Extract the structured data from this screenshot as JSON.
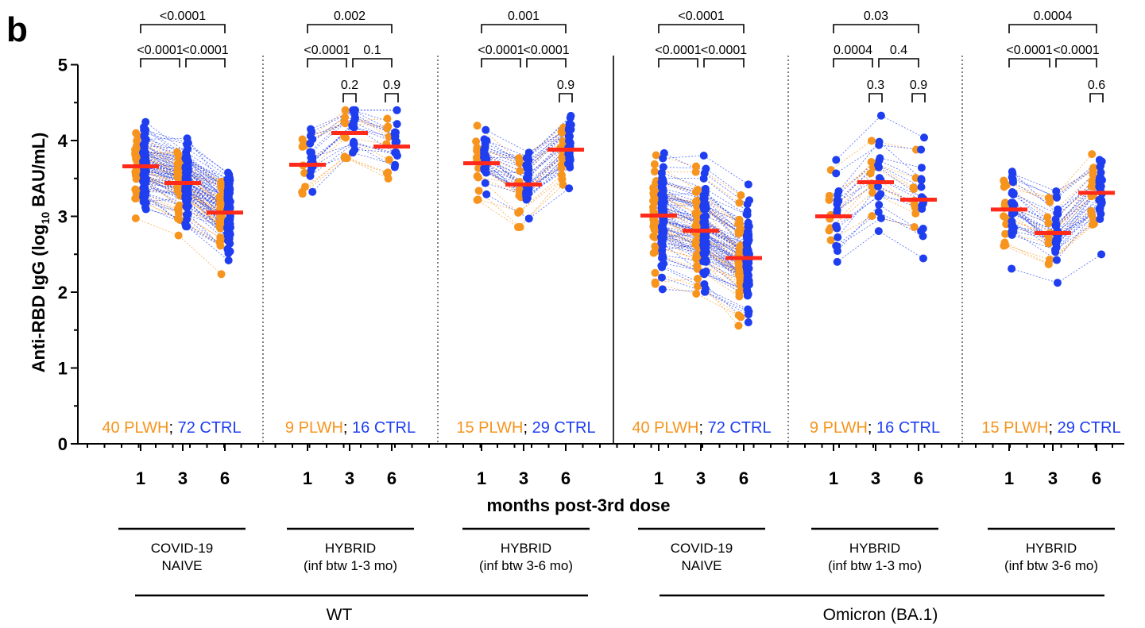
{
  "chart_data": {
    "type": "scatter",
    "panel_label": "b",
    "ylabel_main": "Anti-RBD IgG (log",
    "ylabel_sub": "10",
    "ylabel_end": " BAU/mL)",
    "xlabel": "months post-3rd dose",
    "ylim": [
      0,
      5
    ],
    "yticks": [
      "0",
      "1",
      "2",
      "3",
      "4",
      "5"
    ],
    "months": [
      "1",
      "3",
      "6"
    ],
    "colors": {
      "plwh": "#f7941d",
      "ctrl": "#1e3ef0",
      "median": "#ff2a1a"
    },
    "legend_sep": "; ",
    "panels": [
      {
        "group_line1": "COVID-19",
        "group_line2": "NAIVE",
        "variant": "WT",
        "count_plwh": "40 PLWH",
        "count_ctrl": "72 CTRL",
        "p_1_6": "<0.0001",
        "p_1_3": "<0.0001",
        "p_3_6": "<0.0001",
        "p_pair_3": "",
        "p_pair_6": "",
        "medians": [
          3.66,
          3.44,
          3.05
        ]
      },
      {
        "group_line1": "HYBRID",
        "group_line2": "(inf btw 1-3 mo)",
        "variant": "WT",
        "count_plwh": "9 PLWH",
        "count_ctrl": "16 CTRL",
        "p_1_6": "0.002",
        "p_1_3": "<0.0001",
        "p_3_6": "0.1",
        "p_pair_3": "0.2",
        "p_pair_6": "0.9",
        "medians": [
          3.68,
          4.1,
          3.92
        ]
      },
      {
        "group_line1": "HYBRID",
        "group_line2": "(inf btw 3-6 mo)",
        "variant": "WT",
        "count_plwh": "15 PLWH",
        "count_ctrl": "29 CTRL",
        "p_1_6": "0.001",
        "p_1_3": "<0.0001",
        "p_3_6": "<0.0001",
        "p_pair_3": "",
        "p_pair_6": "0.9",
        "medians": [
          3.7,
          3.42,
          3.88
        ]
      },
      {
        "group_line1": "COVID-19",
        "group_line2": "NAIVE",
        "variant": "Omicron (BA.1)",
        "count_plwh": "40 PLWH",
        "count_ctrl": "72 CTRL",
        "p_1_6": "<0.0001",
        "p_1_3": "<0.0001",
        "p_3_6": "<0.0001",
        "p_pair_3": "",
        "p_pair_6": "",
        "medians": [
          3.01,
          2.81,
          2.45
        ]
      },
      {
        "group_line1": "HYBRID",
        "group_line2": "(inf btw 1-3 mo)",
        "variant": "Omicron (BA.1)",
        "count_plwh": "9 PLWH",
        "count_ctrl": "16 CTRL",
        "p_1_6": "0.03",
        "p_1_3": "0.0004",
        "p_3_6": "0.4",
        "p_pair_3": "0.3",
        "p_pair_6": "0.9",
        "medians": [
          3.0,
          3.45,
          3.22
        ]
      },
      {
        "group_line1": "HYBRID",
        "group_line2": "(inf btw 3-6 mo)",
        "variant": "Omicron (BA.1)",
        "count_plwh": "15 PLWH",
        "count_ctrl": "29 CTRL",
        "p_1_6": "0.0004",
        "p_1_3": "<0.0001",
        "p_3_6": "<0.0001",
        "p_pair_3": "",
        "p_pair_6": "0.6",
        "medians": [
          3.09,
          2.78,
          3.31
        ]
      }
    ],
    "variant_labels": [
      "WT",
      "Omicron (BA.1)"
    ]
  }
}
